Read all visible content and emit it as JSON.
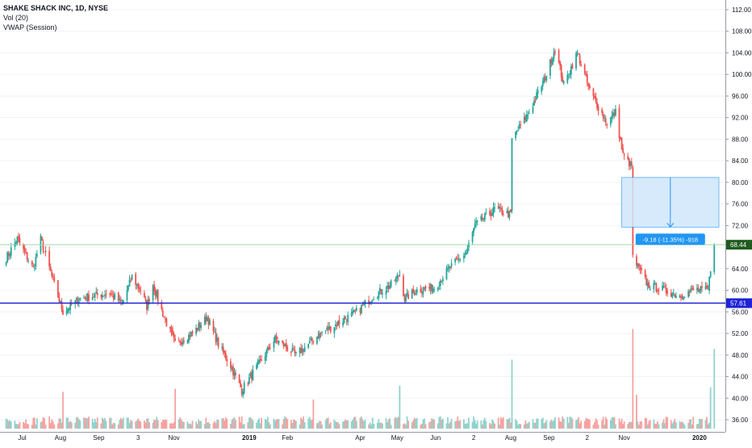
{
  "legend": {
    "title": "SHAKE SHACK INC, 1D, NYSE",
    "line2": "Vol (20)",
    "line3": "VWAP (Session)"
  },
  "colors": {
    "up": "#26a69a",
    "down": "#ef5350",
    "vol_up": "#90d3cc",
    "vol_down": "#f5a3a1",
    "support": "#1e22d6",
    "measure_fill": "#cfe6fb",
    "measure_stroke": "#2196f3",
    "last_price_badge": "#1e5b1e",
    "axis_text": "#131722",
    "grid": "#f0f3fa"
  },
  "chart_data": {
    "type": "candlestick",
    "title": "SHAKE SHACK INC, 1D, NYSE",
    "y_axis": {
      "ylim": [
        34.4,
        113.6
      ],
      "ticks": [
        "36.00",
        "40.00",
        "44.00",
        "48.00",
        "52.00",
        "56.00",
        "60.00",
        "64.00",
        "68.00",
        "72.00",
        "76.00",
        "80.00",
        "84.00",
        "88.00",
        "92.00",
        "96.00",
        "100.00",
        "104.00",
        "108.00",
        "112.00"
      ]
    },
    "x_axis": {
      "labels": [
        "Jul",
        "Aug",
        "Sep",
        "3",
        "Nov",
        "2019",
        "Feb",
        "Apr",
        "May",
        "Jun",
        "2",
        "Aug",
        "Sep",
        "2",
        "Nov",
        "2020"
      ],
      "bold_labels": [
        "2019",
        "2020"
      ]
    },
    "last_price": "68.44",
    "support_level": "57.61",
    "support_value": 57.61,
    "measurement": {
      "label": "-9.18 (-11.35%) -918",
      "from": 80.9,
      "to": 71.7
    },
    "price_anchors": [
      {
        "d": "2018-06-18",
        "p": 66
      },
      {
        "d": "2018-06-27",
        "p": 69.5
      },
      {
        "d": "2018-07-10",
        "p": 64
      },
      {
        "d": "2018-07-16",
        "p": 69.5
      },
      {
        "d": "2018-07-27",
        "p": 61
      },
      {
        "d": "2018-08-03",
        "p": 56
      },
      {
        "d": "2018-08-17",
        "p": 58.5
      },
      {
        "d": "2018-09-10",
        "p": 59.5
      },
      {
        "d": "2018-09-20",
        "p": 57.5
      },
      {
        "d": "2018-09-28",
        "p": 62.5
      },
      {
        "d": "2018-10-05",
        "p": 60
      },
      {
        "d": "2018-10-10",
        "p": 57
      },
      {
        "d": "2018-10-15",
        "p": 61
      },
      {
        "d": "2018-10-24",
        "p": 55
      },
      {
        "d": "2018-11-02",
        "p": 50
      },
      {
        "d": "2018-11-16",
        "p": 52
      },
      {
        "d": "2018-11-28",
        "p": 55
      },
      {
        "d": "2018-12-07",
        "p": 50
      },
      {
        "d": "2018-12-17",
        "p": 46
      },
      {
        "d": "2018-12-26",
        "p": 41.5
      },
      {
        "d": "2019-01-08",
        "p": 46
      },
      {
        "d": "2019-01-22",
        "p": 51
      },
      {
        "d": "2019-02-08",
        "p": 48
      },
      {
        "d": "2019-02-28",
        "p": 52
      },
      {
        "d": "2019-03-15",
        "p": 54
      },
      {
        "d": "2019-03-29",
        "p": 56
      },
      {
        "d": "2019-04-12",
        "p": 59
      },
      {
        "d": "2019-04-26",
        "p": 61
      },
      {
        "d": "2019-05-03",
        "p": 63
      },
      {
        "d": "2019-05-07",
        "p": 58.5
      },
      {
        "d": "2019-05-17",
        "p": 60
      },
      {
        "d": "2019-05-31",
        "p": 60.5
      },
      {
        "d": "2019-06-12",
        "p": 64
      },
      {
        "d": "2019-06-26",
        "p": 67
      },
      {
        "d": "2019-07-03",
        "p": 72
      },
      {
        "d": "2019-07-19",
        "p": 75
      },
      {
        "d": "2019-08-01",
        "p": 74
      },
      {
        "d": "2019-08-02",
        "p": 88
      },
      {
        "d": "2019-08-16",
        "p": 93
      },
      {
        "d": "2019-08-30",
        "p": 100
      },
      {
        "d": "2019-09-06",
        "p": 105
      },
      {
        "d": "2019-09-13",
        "p": 98
      },
      {
        "d": "2019-09-24",
        "p": 104
      },
      {
        "d": "2019-10-04",
        "p": 97
      },
      {
        "d": "2019-10-18",
        "p": 91
      },
      {
        "d": "2019-10-25",
        "p": 93
      },
      {
        "d": "2019-10-31",
        "p": 85
      },
      {
        "d": "2019-11-07",
        "p": 83
      },
      {
        "d": "2019-11-08",
        "p": 66
      },
      {
        "d": "2019-11-20",
        "p": 61
      },
      {
        "d": "2019-12-04",
        "p": 60
      },
      {
        "d": "2019-12-16",
        "p": 59
      },
      {
        "d": "2019-12-27",
        "p": 60
      },
      {
        "d": "2020-01-08",
        "p": 60
      },
      {
        "d": "2020-01-10",
        "p": 64
      },
      {
        "d": "2020-01-13",
        "p": 68.44
      }
    ],
    "volume_spikes": [
      {
        "d": "2018-08-03",
        "v": 2.4
      },
      {
        "d": "2018-11-02",
        "v": 2.6
      },
      {
        "d": "2019-02-22",
        "v": 1.9
      },
      {
        "d": "2019-05-03",
        "v": 2.8
      },
      {
        "d": "2019-08-02",
        "v": 4.5
      },
      {
        "d": "2019-11-08",
        "v": 6.5
      },
      {
        "d": "2019-11-11",
        "v": 2.2
      },
      {
        "d": "2020-01-10",
        "v": 2.7
      },
      {
        "d": "2020-01-13",
        "v": 5.2
      }
    ]
  }
}
